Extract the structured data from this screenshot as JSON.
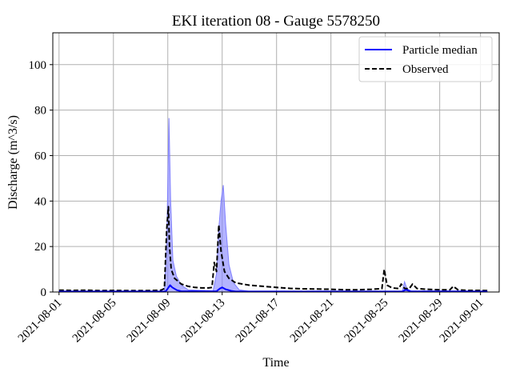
{
  "chart_data": {
    "type": "line",
    "title": "EKI iteration 08 - Gauge 5578250",
    "xlabel": "Time",
    "ylabel": "Discharge (m^3/s)",
    "x_range": [
      "2021-07-31T13:00",
      "2021-09-02T09:00"
    ],
    "ylim": [
      0,
      114
    ],
    "grid": true,
    "legend_position": "top-right",
    "x_ticks": [
      "2021-08-01",
      "2021-08-05",
      "2021-08-09",
      "2021-08-13",
      "2021-08-17",
      "2021-08-21",
      "2021-08-25",
      "2021-08-29",
      "2021-09-01"
    ],
    "y_ticks": [
      0,
      20,
      40,
      60,
      80,
      100
    ],
    "colors": {
      "median": "#0000ff",
      "band": "#8080ff",
      "observed": "#000000",
      "grid": "#b0b0b0"
    },
    "series": [
      {
        "name": "Particle median",
        "style": "solid",
        "points": [
          [
            "2021-08-01T00:00",
            0.2
          ],
          [
            "2021-08-08T20:00",
            0.2
          ],
          [
            "2021-08-09T00:00",
            1.5
          ],
          [
            "2021-08-09T04:00",
            3.0
          ],
          [
            "2021-08-09T08:00",
            2.0
          ],
          [
            "2021-08-09T16:00",
            0.8
          ],
          [
            "2021-08-10T00:00",
            0.3
          ],
          [
            "2021-08-12T14:00",
            0.3
          ],
          [
            "2021-08-12T20:00",
            1.5
          ],
          [
            "2021-08-13T00:00",
            2.0
          ],
          [
            "2021-08-13T06:00",
            1.2
          ],
          [
            "2021-08-13T16:00",
            0.5
          ],
          [
            "2021-08-14T00:00",
            0.2
          ],
          [
            "2021-08-26T06:00",
            0.2
          ],
          [
            "2021-08-26T12:00",
            1.0
          ],
          [
            "2021-08-26T20:00",
            0.3
          ],
          [
            "2021-09-01T12:00",
            0.2
          ]
        ]
      },
      {
        "name": "Observed",
        "style": "dashed",
        "points": [
          [
            "2021-08-01T00:00",
            0.8
          ],
          [
            "2021-08-02T00:00",
            0.7
          ],
          [
            "2021-08-03T00:00",
            0.8
          ],
          [
            "2021-08-04T00:00",
            0.6
          ],
          [
            "2021-08-05T00:00",
            0.7
          ],
          [
            "2021-08-06T00:00",
            0.6
          ],
          [
            "2021-08-07T00:00",
            0.6
          ],
          [
            "2021-08-08T00:00",
            0.7
          ],
          [
            "2021-08-08T12:00",
            0.8
          ],
          [
            "2021-08-08T18:00",
            1.5
          ],
          [
            "2021-08-08T22:00",
            27.0
          ],
          [
            "2021-08-09T01:00",
            37.5
          ],
          [
            "2021-08-09T03:00",
            20.0
          ],
          [
            "2021-08-09T06:00",
            10.0
          ],
          [
            "2021-08-09T12:00",
            6.0
          ],
          [
            "2021-08-10T00:00",
            3.5
          ],
          [
            "2021-08-10T12:00",
            2.5
          ],
          [
            "2021-08-11T00:00",
            2.0
          ],
          [
            "2021-08-11T12:00",
            1.8
          ],
          [
            "2021-08-12T00:00",
            1.8
          ],
          [
            "2021-08-12T06:00",
            2.0
          ],
          [
            "2021-08-12T10:00",
            13.0
          ],
          [
            "2021-08-12T14:00",
            9.0
          ],
          [
            "2021-08-12T18:00",
            29.5
          ],
          [
            "2021-08-12T22:00",
            18.0
          ],
          [
            "2021-08-13T04:00",
            9.0
          ],
          [
            "2021-08-13T12:00",
            6.0
          ],
          [
            "2021-08-14T00:00",
            4.0
          ],
          [
            "2021-08-15T00:00",
            3.0
          ],
          [
            "2021-08-16T00:00",
            2.5
          ],
          [
            "2021-08-17T00:00",
            2.0
          ],
          [
            "2021-08-18T00:00",
            1.6
          ],
          [
            "2021-08-19T00:00",
            1.4
          ],
          [
            "2021-08-20T00:00",
            1.3
          ],
          [
            "2021-08-21T00:00",
            1.2
          ],
          [
            "2021-08-22T00:00",
            1.0
          ],
          [
            "2021-08-23T00:00",
            1.0
          ],
          [
            "2021-08-24T00:00",
            1.2
          ],
          [
            "2021-08-24T18:00",
            1.5
          ],
          [
            "2021-08-24T22:00",
            10.0
          ],
          [
            "2021-08-25T03:00",
            3.0
          ],
          [
            "2021-08-25T12:00",
            1.8
          ],
          [
            "2021-08-26T00:00",
            1.5
          ],
          [
            "2021-08-26T04:00",
            3.5
          ],
          [
            "2021-08-26T10:00",
            1.6
          ],
          [
            "2021-08-26T18:00",
            1.4
          ],
          [
            "2021-08-27T00:00",
            3.5
          ],
          [
            "2021-08-27T08:00",
            1.5
          ],
          [
            "2021-08-28T00:00",
            1.2
          ],
          [
            "2021-08-29T00:00",
            1.0
          ],
          [
            "2021-08-29T18:00",
            1.0
          ],
          [
            "2021-08-30T00:00",
            2.5
          ],
          [
            "2021-08-30T08:00",
            1.0
          ],
          [
            "2021-08-31T00:00",
            0.7
          ],
          [
            "2021-09-01T00:00",
            0.7
          ],
          [
            "2021-09-01T12:00",
            0.6
          ]
        ]
      }
    ],
    "uncertainty_band": {
      "points": [
        [
          "2021-08-01T00:00",
          0,
          0.3
        ],
        [
          "2021-08-08T18:00",
          0,
          0.3
        ],
        [
          "2021-08-08T22:00",
          0,
          20.0
        ],
        [
          "2021-08-09T02:00",
          0,
          76.5
        ],
        [
          "2021-08-09T05:00",
          0,
          40.0
        ],
        [
          "2021-08-09T09:00",
          0,
          14.0
        ],
        [
          "2021-08-09T15:00",
          0,
          7.0
        ],
        [
          "2021-08-10T00:00",
          0,
          3.0
        ],
        [
          "2021-08-10T12:00",
          0,
          1.0
        ],
        [
          "2021-08-12T08:00",
          0,
          0.5
        ],
        [
          "2021-08-12T14:00",
          0,
          8.0
        ],
        [
          "2021-08-12T18:00",
          0,
          28.0
        ],
        [
          "2021-08-12T22:00",
          0,
          40.0
        ],
        [
          "2021-08-13T02:00",
          0,
          47.0
        ],
        [
          "2021-08-13T06:00",
          0,
          30.0
        ],
        [
          "2021-08-13T12:00",
          0,
          12.0
        ],
        [
          "2021-08-13T20:00",
          0,
          4.0
        ],
        [
          "2021-08-14T06:00",
          0,
          1.0
        ],
        [
          "2021-08-15T00:00",
          0,
          0.3
        ],
        [
          "2021-08-26T06:00",
          0,
          0.4
        ],
        [
          "2021-08-26T10:00",
          0,
          4.5
        ],
        [
          "2021-08-26T14:00",
          0,
          1.5
        ],
        [
          "2021-08-26T22:00",
          0,
          0.3
        ],
        [
          "2021-09-01T12:00",
          0,
          0.2
        ]
      ]
    }
  }
}
